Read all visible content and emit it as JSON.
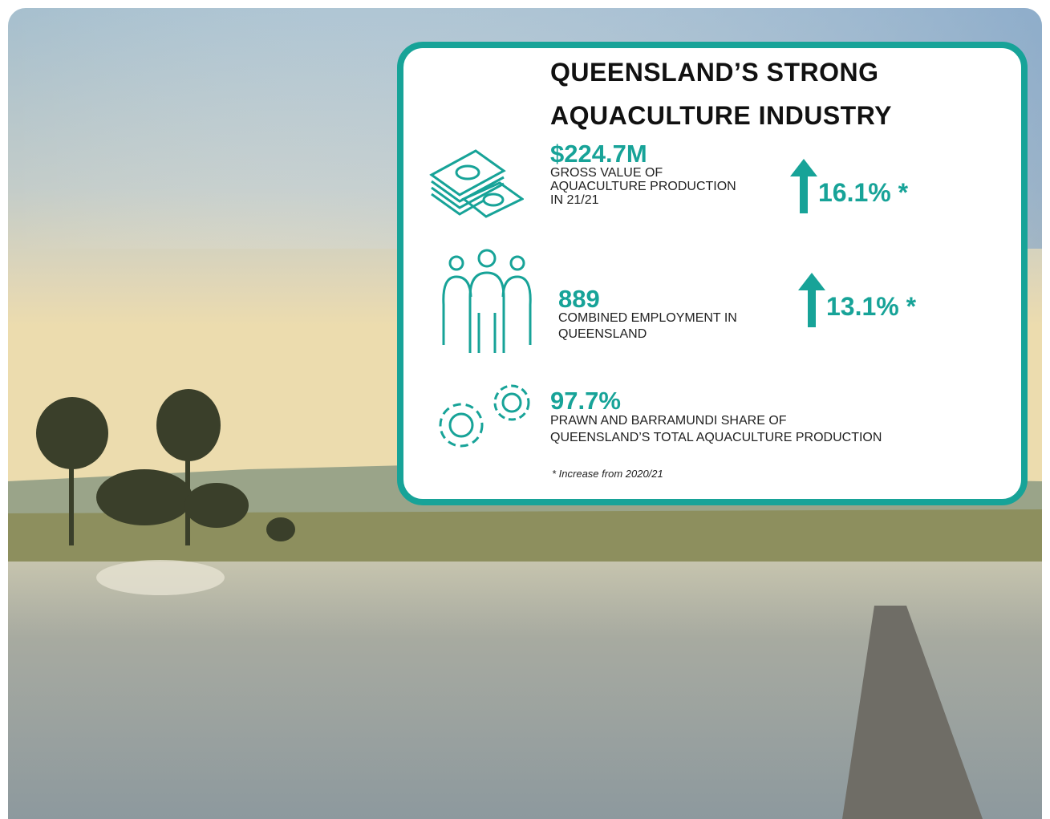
{
  "card": {
    "title": [
      "QUEENSLAND’S STRONG",
      "AQUACULTURE INDUSTRY"
    ],
    "stats": [
      {
        "value": "$224.7M",
        "label": [
          "GROSS VALUE OF",
          "AQUACULTURE PRODUCTION",
          "IN 21/21"
        ],
        "change": "16.1% *"
      },
      {
        "value": "889",
        "label": [
          "COMBINED EMPLOYMENT IN",
          "QUEENSLAND"
        ],
        "change": "13.1% *"
      },
      {
        "value": "97.7%",
        "label": [
          "PRAWN AND BARRAMUNDI SHARE OF",
          "QUEENSLAND’S TOTAL AQUACULTURE PRODUCTION"
        ]
      }
    ],
    "footnote": "* Increase from 2020/21"
  }
}
